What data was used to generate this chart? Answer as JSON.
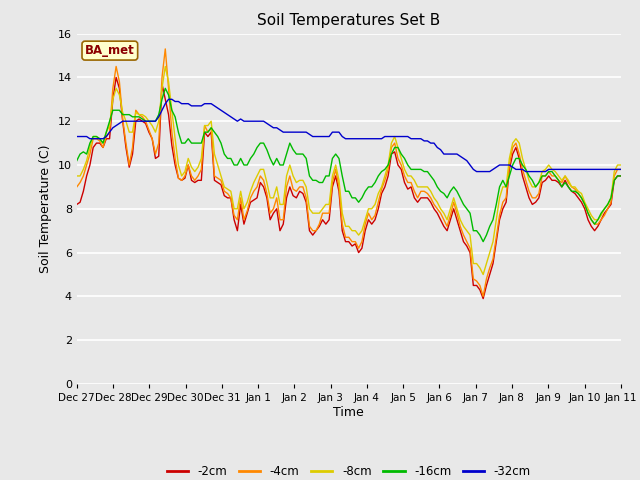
{
  "title": "Soil Temperatures Set B",
  "xlabel": "Time",
  "ylabel": "Soil Temperature (C)",
  "ylim": [
    0,
    16
  ],
  "yticks": [
    0,
    2,
    4,
    6,
    8,
    10,
    12,
    14,
    16
  ],
  "fig_facecolor": "#e8e8e8",
  "ax_facecolor": "#e8e8e8",
  "colors": {
    "-2cm": "#cc0000",
    "-4cm": "#ff8800",
    "-8cm": "#ddcc00",
    "-16cm": "#00bb00",
    "-32cm": "#0000cc"
  },
  "legend_labels": [
    "-2cm",
    "-4cm",
    "-8cm",
    "-16cm",
    "-32cm"
  ],
  "x_tick_labels": [
    "Dec 27",
    "Dec 28",
    "Dec 29",
    "Dec 30",
    "Dec 31",
    "Jan 1",
    "Jan 2",
    "Jan 3",
    "Jan 4",
    "Jan 5",
    "Jan 6",
    "Jan 7",
    "Jan 8",
    "Jan 9",
    "Jan 10",
    "Jan 11"
  ],
  "annotation": "BA_met",
  "n_days": 15,
  "series": {
    "-2cm": [
      8.2,
      8.3,
      8.8,
      9.5,
      10.0,
      10.8,
      11.0,
      11.0,
      10.8,
      11.2,
      11.2,
      13.0,
      14.0,
      13.5,
      12.0,
      10.8,
      9.9,
      10.5,
      12.0,
      12.1,
      12.0,
      11.9,
      11.5,
      11.2,
      10.3,
      10.4,
      13.7,
      13.0,
      12.3,
      10.9,
      10.0,
      9.4,
      9.3,
      9.4,
      10.0,
      9.3,
      9.2,
      9.3,
      9.3,
      11.5,
      11.3,
      11.5,
      9.3,
      9.2,
      9.1,
      8.6,
      8.5,
      8.5,
      7.5,
      7.0,
      8.2,
      7.3,
      7.8,
      8.3,
      8.4,
      8.5,
      9.2,
      9.0,
      8.5,
      7.5,
      7.8,
      8.0,
      7.0,
      7.3,
      8.5,
      9.0,
      8.6,
      8.5,
      8.8,
      8.7,
      8.3,
      7.0,
      6.8,
      7.0,
      7.2,
      7.5,
      7.3,
      7.5,
      9.0,
      9.5,
      8.8,
      7.0,
      6.5,
      6.5,
      6.3,
      6.4,
      6.0,
      6.2,
      7.0,
      7.5,
      7.3,
      7.5,
      8.0,
      8.7,
      9.0,
      9.5,
      10.5,
      10.6,
      10.0,
      9.8,
      9.2,
      8.9,
      9.0,
      8.5,
      8.3,
      8.5,
      8.5,
      8.5,
      8.3,
      8.0,
      7.8,
      7.5,
      7.2,
      7.0,
      7.5,
      8.0,
      7.5,
      7.0,
      6.5,
      6.3,
      6.0,
      4.5,
      4.5,
      4.3,
      3.9,
      4.5,
      5.0,
      5.5,
      6.5,
      7.5,
      8.0,
      8.3,
      9.8,
      10.5,
      10.8,
      10.3,
      9.5,
      9.0,
      8.5,
      8.2,
      8.3,
      8.5,
      9.2,
      9.3,
      9.5,
      9.3,
      9.3,
      9.2,
      9.0,
      9.3,
      9.0,
      8.8,
      8.7,
      8.5,
      8.3,
      8.0,
      7.5,
      7.2,
      7.0,
      7.2,
      7.5,
      7.8,
      8.0,
      8.2,
      9.3,
      9.5,
      9.5
    ],
    "-4cm": [
      9.0,
      9.2,
      9.5,
      10.0,
      10.5,
      11.2,
      11.2,
      11.1,
      10.8,
      11.3,
      11.5,
      13.5,
      14.5,
      13.8,
      12.1,
      11.0,
      10.0,
      10.8,
      12.5,
      12.3,
      12.2,
      12.0,
      11.6,
      11.2,
      10.5,
      11.0,
      14.0,
      15.3,
      13.5,
      11.5,
      10.3,
      9.4,
      9.3,
      9.5,
      10.0,
      9.5,
      9.3,
      9.5,
      9.8,
      11.8,
      11.5,
      11.7,
      9.5,
      9.4,
      9.3,
      8.8,
      8.7,
      8.5,
      7.7,
      7.5,
      8.5,
      7.5,
      7.9,
      8.5,
      8.8,
      9.0,
      9.5,
      9.3,
      8.7,
      7.8,
      8.0,
      8.5,
      7.5,
      7.5,
      9.0,
      9.5,
      8.9,
      8.8,
      9.0,
      9.0,
      8.5,
      7.2,
      7.0,
      7.0,
      7.3,
      7.8,
      7.8,
      7.8,
      9.2,
      9.8,
      9.0,
      7.3,
      6.7,
      6.7,
      6.5,
      6.5,
      6.2,
      6.5,
      7.3,
      7.8,
      7.5,
      7.7,
      8.3,
      8.9,
      9.3,
      9.8,
      10.8,
      11.0,
      10.3,
      10.0,
      9.5,
      9.2,
      9.2,
      8.8,
      8.5,
      8.8,
      8.8,
      8.7,
      8.5,
      8.2,
      8.0,
      7.8,
      7.5,
      7.2,
      7.7,
      8.3,
      7.8,
      7.2,
      6.8,
      6.5,
      6.2,
      4.8,
      4.7,
      4.5,
      4.0,
      4.8,
      5.3,
      5.7,
      6.7,
      7.7,
      8.3,
      8.5,
      10.0,
      10.8,
      11.0,
      10.5,
      9.8,
      9.3,
      8.8,
      8.5,
      8.5,
      8.7,
      9.5,
      9.5,
      9.7,
      9.5,
      9.5,
      9.3,
      9.2,
      9.5,
      9.2,
      9.0,
      8.9,
      8.7,
      8.5,
      8.2,
      7.8,
      7.5,
      7.3,
      7.3,
      7.5,
      7.7,
      8.0,
      8.3,
      9.5,
      9.8,
      9.8
    ],
    "-8cm": [
      9.5,
      9.5,
      9.8,
      10.2,
      10.8,
      11.3,
      11.3,
      11.2,
      11.0,
      11.5,
      11.8,
      13.0,
      13.5,
      13.2,
      12.4,
      12.0,
      11.5,
      11.5,
      12.4,
      12.3,
      12.3,
      12.2,
      12.0,
      11.8,
      11.5,
      12.0,
      13.5,
      14.5,
      13.8,
      12.5,
      11.2,
      10.0,
      9.5,
      9.7,
      10.3,
      9.9,
      9.7,
      9.9,
      10.3,
      11.8,
      11.8,
      12.0,
      10.5,
      10.0,
      9.5,
      9.0,
      8.9,
      8.8,
      8.0,
      8.0,
      8.8,
      8.0,
      8.3,
      8.8,
      9.2,
      9.5,
      9.8,
      9.8,
      9.2,
      8.5,
      8.5,
      9.0,
      8.2,
      8.2,
      9.5,
      10.0,
      9.5,
      9.2,
      9.3,
      9.3,
      9.0,
      8.0,
      7.8,
      7.8,
      7.8,
      8.0,
      8.2,
      8.2,
      9.5,
      10.0,
      9.3,
      7.8,
      7.2,
      7.2,
      7.0,
      7.0,
      6.8,
      7.0,
      7.5,
      8.0,
      8.0,
      8.2,
      8.7,
      9.0,
      9.5,
      10.0,
      11.0,
      11.3,
      10.8,
      10.3,
      9.8,
      9.5,
      9.5,
      9.3,
      9.0,
      9.0,
      9.0,
      9.0,
      8.8,
      8.5,
      8.3,
      8.0,
      7.8,
      7.5,
      8.0,
      8.5,
      8.0,
      7.5,
      7.2,
      7.0,
      6.8,
      5.5,
      5.5,
      5.3,
      5.0,
      5.5,
      6.0,
      6.5,
      7.5,
      8.5,
      9.0,
      9.0,
      10.3,
      11.0,
      11.2,
      11.0,
      10.3,
      9.8,
      9.3,
      9.0,
      9.0,
      9.2,
      9.7,
      9.8,
      10.0,
      9.8,
      9.7,
      9.5,
      9.3,
      9.5,
      9.3,
      9.0,
      9.0,
      8.8,
      8.7,
      8.3,
      8.0,
      7.7,
      7.5,
      7.5,
      7.7,
      8.0,
      8.2,
      8.5,
      9.7,
      10.0,
      10.0
    ],
    "-16cm": [
      10.2,
      10.5,
      10.6,
      10.5,
      11.0,
      11.3,
      11.3,
      11.2,
      11.0,
      11.5,
      12.0,
      12.5,
      12.5,
      12.5,
      12.3,
      12.3,
      12.3,
      12.2,
      12.2,
      12.2,
      12.1,
      12.0,
      12.0,
      12.0,
      12.0,
      12.3,
      13.0,
      13.5,
      13.2,
      12.5,
      12.2,
      11.5,
      11.0,
      11.0,
      11.2,
      11.0,
      11.0,
      11.0,
      11.0,
      11.5,
      11.5,
      11.7,
      11.5,
      11.3,
      11.0,
      10.5,
      10.3,
      10.3,
      10.0,
      10.0,
      10.3,
      10.0,
      10.0,
      10.3,
      10.5,
      10.8,
      11.0,
      11.0,
      10.7,
      10.3,
      10.0,
      10.3,
      10.0,
      10.0,
      10.5,
      11.0,
      10.7,
      10.5,
      10.5,
      10.5,
      10.3,
      9.5,
      9.3,
      9.3,
      9.2,
      9.2,
      9.5,
      9.5,
      10.3,
      10.5,
      10.3,
      9.5,
      8.8,
      8.8,
      8.5,
      8.5,
      8.3,
      8.5,
      8.8,
      9.0,
      9.0,
      9.2,
      9.5,
      9.7,
      9.8,
      10.0,
      10.5,
      10.8,
      10.8,
      10.5,
      10.3,
      10.0,
      9.8,
      9.8,
      9.8,
      9.8,
      9.7,
      9.7,
      9.5,
      9.3,
      9.0,
      8.8,
      8.7,
      8.5,
      8.8,
      9.0,
      8.8,
      8.5,
      8.2,
      8.0,
      7.8,
      7.0,
      7.0,
      6.8,
      6.5,
      6.8,
      7.2,
      7.5,
      8.2,
      9.0,
      9.3,
      9.0,
      9.5,
      10.0,
      10.3,
      10.3,
      10.0,
      9.8,
      9.5,
      9.3,
      9.0,
      9.2,
      9.5,
      9.5,
      9.7,
      9.7,
      9.5,
      9.3,
      9.0,
      9.2,
      9.0,
      8.8,
      8.8,
      8.7,
      8.5,
      8.2,
      7.8,
      7.5,
      7.3,
      7.5,
      7.8,
      8.0,
      8.2,
      8.5,
      9.3,
      9.5,
      9.5
    ],
    "-32cm": [
      11.3,
      11.3,
      11.3,
      11.3,
      11.2,
      11.2,
      11.2,
      11.2,
      11.2,
      11.3,
      11.5,
      11.7,
      11.8,
      11.9,
      12.0,
      12.0,
      12.0,
      12.0,
      12.0,
      12.0,
      12.0,
      12.0,
      12.0,
      12.0,
      12.0,
      12.2,
      12.5,
      12.8,
      13.0,
      13.0,
      12.9,
      12.9,
      12.8,
      12.8,
      12.8,
      12.7,
      12.7,
      12.7,
      12.7,
      12.8,
      12.8,
      12.8,
      12.7,
      12.6,
      12.5,
      12.4,
      12.3,
      12.2,
      12.1,
      12.0,
      12.1,
      12.0,
      12.0,
      12.0,
      12.0,
      12.0,
      12.0,
      12.0,
      11.9,
      11.8,
      11.7,
      11.7,
      11.6,
      11.5,
      11.5,
      11.5,
      11.5,
      11.5,
      11.5,
      11.5,
      11.5,
      11.4,
      11.3,
      11.3,
      11.3,
      11.3,
      11.3,
      11.3,
      11.5,
      11.5,
      11.5,
      11.3,
      11.2,
      11.2,
      11.2,
      11.2,
      11.2,
      11.2,
      11.2,
      11.2,
      11.2,
      11.2,
      11.2,
      11.2,
      11.3,
      11.3,
      11.3,
      11.3,
      11.3,
      11.3,
      11.3,
      11.3,
      11.2,
      11.2,
      11.2,
      11.2,
      11.1,
      11.1,
      11.0,
      11.0,
      10.8,
      10.7,
      10.5,
      10.5,
      10.5,
      10.5,
      10.5,
      10.4,
      10.3,
      10.2,
      10.0,
      9.8,
      9.7,
      9.7,
      9.7,
      9.7,
      9.7,
      9.8,
      9.9,
      10.0,
      10.0,
      10.0,
      10.0,
      9.9,
      9.8,
      9.8,
      9.8,
      9.7,
      9.7,
      9.7,
      9.7,
      9.7,
      9.7,
      9.7,
      9.8,
      9.8,
      9.8,
      9.8,
      9.8,
      9.8,
      9.8,
      9.8,
      9.8,
      9.8,
      9.8,
      9.8,
      9.8,
      9.8,
      9.8,
      9.8,
      9.8,
      9.8,
      9.8,
      9.8,
      9.8,
      9.8,
      9.8
    ]
  }
}
